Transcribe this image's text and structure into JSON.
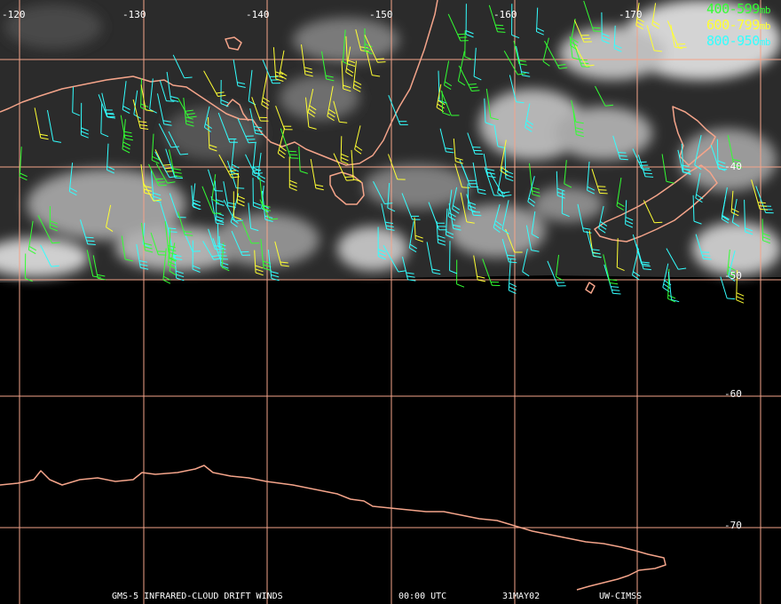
{
  "longitude_labels": [
    "-120",
    "-130",
    "-140",
    "-150",
    "-160",
    "-170"
  ],
  "latitude_labels": [
    "-40",
    "-50",
    "-60",
    "-70"
  ],
  "legend": [
    {
      "range": "400-599",
      "unit": "mb",
      "color": "#33ff33"
    },
    {
      "range": "600-799",
      "unit": "mb",
      "color": "#ffff33"
    },
    {
      "range": "800-950",
      "unit": "mb",
      "color": "#33ffff"
    }
  ],
  "caption": {
    "product": "GMS-5 INFRARED-CLOUD DRIFT WINDS",
    "time": "00:00 UTC",
    "date": "31MAY02",
    "source": "UW-CIMSS"
  },
  "colors": {
    "grid": "#f4a48a",
    "coastline": "#f4a48a",
    "background": "#000000"
  }
}
